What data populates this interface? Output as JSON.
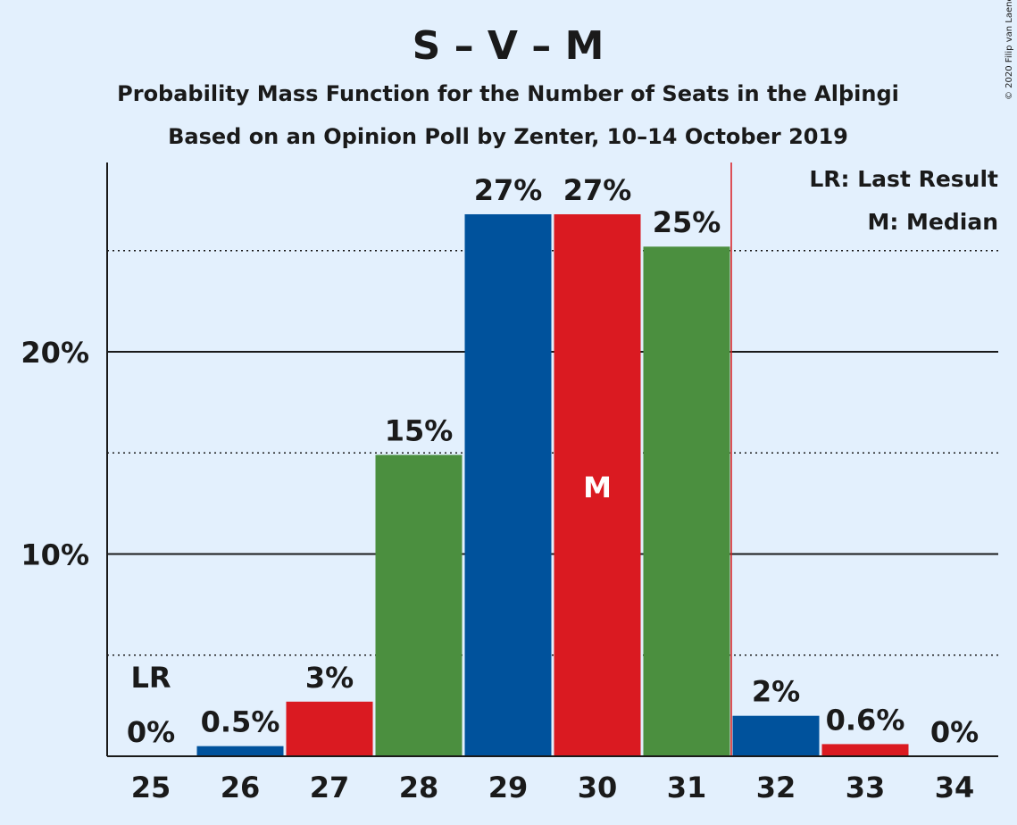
{
  "chart_data": {
    "type": "bar",
    "title": "S – V – M",
    "subtitle_1": "Probability Mass Function for the Number of Seats in the Alþingi",
    "subtitle_2": "Based on an Opinion Poll by Zenter, 10–14 October 2019",
    "copyright": "© 2020 Filip van Laenen",
    "categories": [
      "25",
      "26",
      "27",
      "28",
      "29",
      "30",
      "31",
      "32",
      "33",
      "34"
    ],
    "values": [
      0.0,
      0.5,
      2.7,
      14.9,
      26.8,
      26.8,
      25.2,
      2.0,
      0.6,
      0.0
    ],
    "bar_labels": [
      "0%",
      "0.5%",
      "3%",
      "15%",
      "27%",
      "27%",
      "25%",
      "2%",
      "0.6%",
      "0%"
    ],
    "bar_colors": [
      "#00529c",
      "#00529c",
      "#da1a21",
      "#4b8f3f",
      "#00529c",
      "#da1a21",
      "#4b8f3f",
      "#00529c",
      "#da1a21",
      "#4b8f3f"
    ],
    "ylim": [
      0,
      29
    ],
    "yticks": [
      10,
      20
    ],
    "ytick_labels": [
      "10%",
      "20%"
    ],
    "dotted_gridlines": [
      5,
      15,
      25
    ],
    "last_result": {
      "category": "25",
      "marker": "LR",
      "line_after_category": "31",
      "line_color": "#da1a21"
    },
    "median": {
      "category": "30",
      "marker": "M"
    },
    "legend": [
      "LR: Last Result",
      "M: Median"
    ],
    "legend_placement": "top-right"
  }
}
